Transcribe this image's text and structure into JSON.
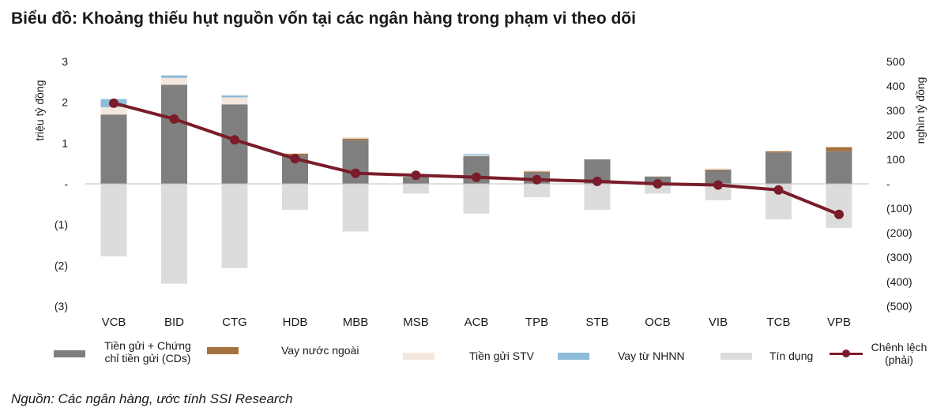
{
  "title": "Biểu đồ: Khoảng thiếu hụt nguồn vốn tại các ngân hàng trong phạm vi theo dõi",
  "source": "Nguồn: Các ngân hàng, ước tính SSI Research",
  "chart_data": {
    "type": "bar",
    "categories": [
      "VCB",
      "BID",
      "CTG",
      "HDB",
      "MBB",
      "MSB",
      "ACB",
      "TPB",
      "STB",
      "OCB",
      "VIB",
      "TCB",
      "VPB"
    ],
    "ylabel": "triệu tỷ đồng",
    "y2label": "nghìn tỷ đồng",
    "ylim": [
      -3,
      3
    ],
    "y2lim": [
      -500,
      500
    ],
    "y_ticks": [
      "3",
      "2",
      "1",
      "-",
      "(1)",
      "(2)",
      "(3)"
    ],
    "y2_ticks": [
      "500",
      "400",
      "300",
      "200",
      "100",
      "-",
      "(100)",
      "(200)",
      "(300)",
      "(400)",
      "(500)"
    ],
    "grid": false,
    "legend_position": "bottom",
    "colors": {
      "deposits": "#7f7f7f",
      "foreign": "#a5723f",
      "interbank": "#f4e7de",
      "sbv": "#8fbcd8",
      "credit": "#dcdcdc",
      "gap": "#7a1c2a"
    },
    "series": [
      {
        "name": "Tiền gửi + Chứng chỉ tiền gửi (CDs)",
        "key": "deposits",
        "stack": "pos",
        "values": [
          1.7,
          2.43,
          1.95,
          0.7,
          1.07,
          0.17,
          0.68,
          0.28,
          0.6,
          0.18,
          0.33,
          0.77,
          0.8
        ]
      },
      {
        "name": "Vay nước ngoài",
        "key": "foreign",
        "stack": "pos",
        "values": [
          0,
          0,
          0,
          0.04,
          0.04,
          0,
          0,
          0.02,
          0,
          0,
          0.02,
          0.03,
          0.1
        ]
      },
      {
        "name": "Tiền gửi STV",
        "key": "interbank",
        "stack": "pos",
        "values": [
          0.18,
          0.17,
          0.17,
          0,
          0.04,
          0,
          0.02,
          0.03,
          0,
          0.01,
          0.03,
          0,
          0
        ]
      },
      {
        "name": "Vay từ NHNN",
        "key": "sbv",
        "stack": "pos",
        "values": [
          0.2,
          0.06,
          0.05,
          0,
          0,
          0,
          0.03,
          0,
          0,
          0,
          0,
          0,
          0
        ]
      },
      {
        "name": "Tín dụng",
        "key": "credit",
        "stack": "neg",
        "values": [
          -1.78,
          -2.45,
          -2.07,
          -0.64,
          -1.17,
          -0.24,
          -0.73,
          -0.33,
          -0.64,
          -0.24,
          -0.4,
          -0.87,
          -1.08
        ]
      },
      {
        "name": "Chênh lệch (phải)",
        "key": "gap",
        "type": "line",
        "axis": "right",
        "values": [
          330,
          265,
          180,
          103,
          43,
          35,
          27,
          17,
          10,
          0,
          -5,
          -25,
          -125
        ]
      }
    ]
  }
}
